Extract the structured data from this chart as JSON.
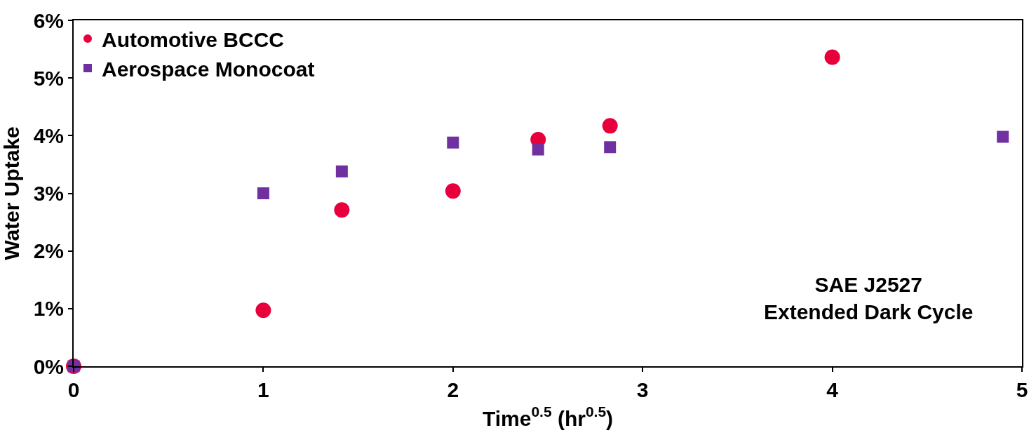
{
  "chart_data": {
    "type": "scatter",
    "xlabel": "Time$^{0.5}$ (hr$^{0.5}$)",
    "ylabel": "Water Uptake",
    "annotations": [
      "SAE J2527\nExtended Dark Cycle"
    ],
    "series": [
      {
        "name": "Automotive BCCC",
        "color": "#e8003c",
        "marker": "circle",
        "x": [
          0,
          1,
          1.414,
          2,
          2.449,
          2.828,
          4
        ],
        "values": [
          0,
          0.97,
          2.71,
          3.04,
          3.93,
          4.17,
          5.36
        ]
      },
      {
        "name": "Aerospace Monocoat",
        "color": "#7030a0",
        "marker": "square",
        "x": [
          0,
          1,
          1.414,
          2,
          2.449,
          2.828,
          4.899
        ],
        "values": [
          0,
          3.0,
          3.38,
          3.88,
          3.76,
          3.8,
          3.98
        ]
      }
    ],
    "xlim": [
      0,
      5
    ],
    "xticks": [
      0,
      1,
      2,
      3,
      4,
      5
    ],
    "ylim": [
      0,
      6
    ],
    "yticks": [
      {
        "value": 0,
        "label": "0%"
      },
      {
        "value": 1,
        "label": "1%"
      },
      {
        "value": 2,
        "label": "2%"
      },
      {
        "value": 3,
        "label": "3%"
      },
      {
        "value": 4,
        "label": "4%"
      },
      {
        "value": 5,
        "label": "5%"
      },
      {
        "value": 6,
        "label": "6%"
      }
    ],
    "legend": "top left"
  }
}
